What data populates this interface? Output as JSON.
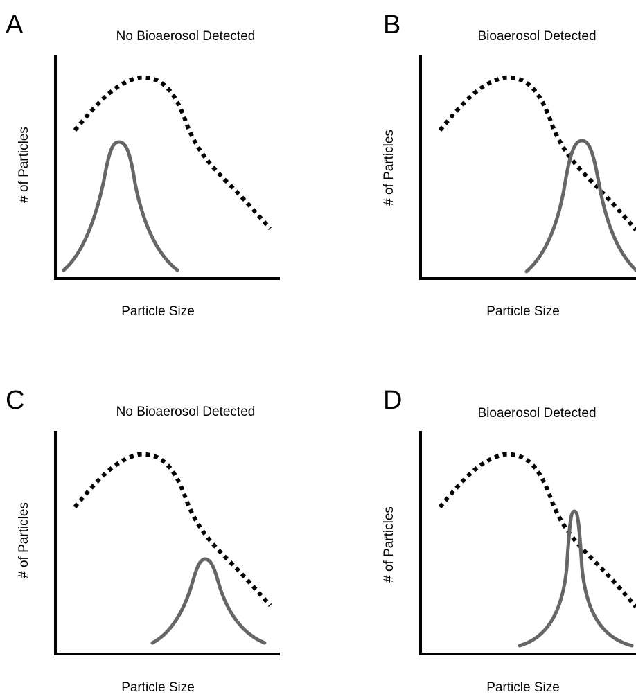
{
  "colors": {
    "background": "#ffffff",
    "axis": "#000000",
    "dotted_curve": "#000000",
    "solid_curve": "#666666"
  },
  "panels": [
    {
      "letter": "A",
      "title": "No Bioaerosol Detected",
      "xlabel": "Particle Size",
      "ylabel": "# of Particles"
    },
    {
      "letter": "B",
      "title": "Bioaerosol Detected",
      "xlabel": "Particle Size",
      "ylabel": "# of Particles"
    },
    {
      "letter": "C",
      "title": "No Bioaerosol Detected",
      "xlabel": "Particle Size",
      "ylabel": "# of Particles"
    },
    {
      "letter": "D",
      "title": "Bioaerosol Detected",
      "xlabel": "Particle Size",
      "ylabel": "# of Particles"
    }
  ]
}
